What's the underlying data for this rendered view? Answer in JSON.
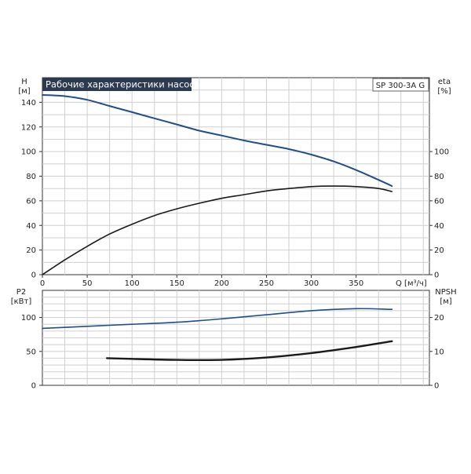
{
  "chart_data": [
    {
      "type": "line",
      "title": "Рабочие характеристики насоса",
      "model_label": "SP 300-3A G",
      "ylabel_left": "H",
      "ylabel_left_unit": "[м]",
      "ylabel_right": "eta",
      "ylabel_right_unit": "[%]",
      "xlabel": "Q [м³/ч]",
      "xlim": [
        0,
        430
      ],
      "ylim": [
        0,
        160
      ],
      "grid": true,
      "x_ticks": [
        "0",
        "50",
        "100",
        "150",
        "200",
        "250",
        "300",
        "350"
      ],
      "y_left_ticks": [
        "0",
        "20",
        "40",
        "60",
        "80",
        "100",
        "120",
        "140"
      ],
      "y_right_ticks": [
        "0",
        "20",
        "40",
        "60",
        "80",
        "100"
      ],
      "series": [
        {
          "color": "#1f4e8c",
          "x": [
            0,
            25,
            50,
            75,
            100,
            125,
            150,
            175,
            200,
            225,
            250,
            275,
            300,
            325,
            350,
            375,
            390
          ],
          "y": [
            146,
            145,
            142,
            137,
            132,
            127,
            122,
            117,
            113,
            109,
            105.5,
            102,
            97.5,
            92,
            85,
            77,
            72
          ]
        },
        {
          "color": "#1a1a1a",
          "x": [
            0,
            25,
            50,
            75,
            100,
            125,
            150,
            175,
            200,
            225,
            250,
            275,
            300,
            325,
            350,
            375,
            390
          ],
          "y": [
            0,
            12,
            23,
            33,
            41,
            48,
            53.5,
            58,
            62,
            65,
            68,
            70,
            71.5,
            72,
            71.5,
            70,
            67.5
          ]
        }
      ]
    },
    {
      "type": "line",
      "ylabel_left": "P2",
      "ylabel_left_unit": "[кВт]",
      "ylabel_right": "NPSH",
      "ylabel_right_unit": "[м]",
      "xlim": [
        0,
        430
      ],
      "ylim": [
        0,
        140
      ],
      "ylim_right": [
        0,
        28
      ],
      "grid": true,
      "y_left_ticks": [
        "0",
        "50",
        "100"
      ],
      "y_right_ticks": [
        "0",
        "10",
        "20"
      ],
      "series": [
        {
          "color": "#1f4e8c",
          "axis": "left",
          "x": [
            0,
            50,
            100,
            150,
            200,
            250,
            300,
            350,
            390
          ],
          "y": [
            84,
            87,
            90,
            93,
            98,
            104,
            110,
            113,
            112
          ]
        },
        {
          "color": "#1a1a1a",
          "axis": "right",
          "x": [
            72,
            100,
            150,
            200,
            250,
            300,
            350,
            390
          ],
          "y": [
            8,
            7.8,
            7.5,
            7.5,
            8.2,
            9.5,
            11.3,
            13
          ]
        }
      ]
    }
  ]
}
